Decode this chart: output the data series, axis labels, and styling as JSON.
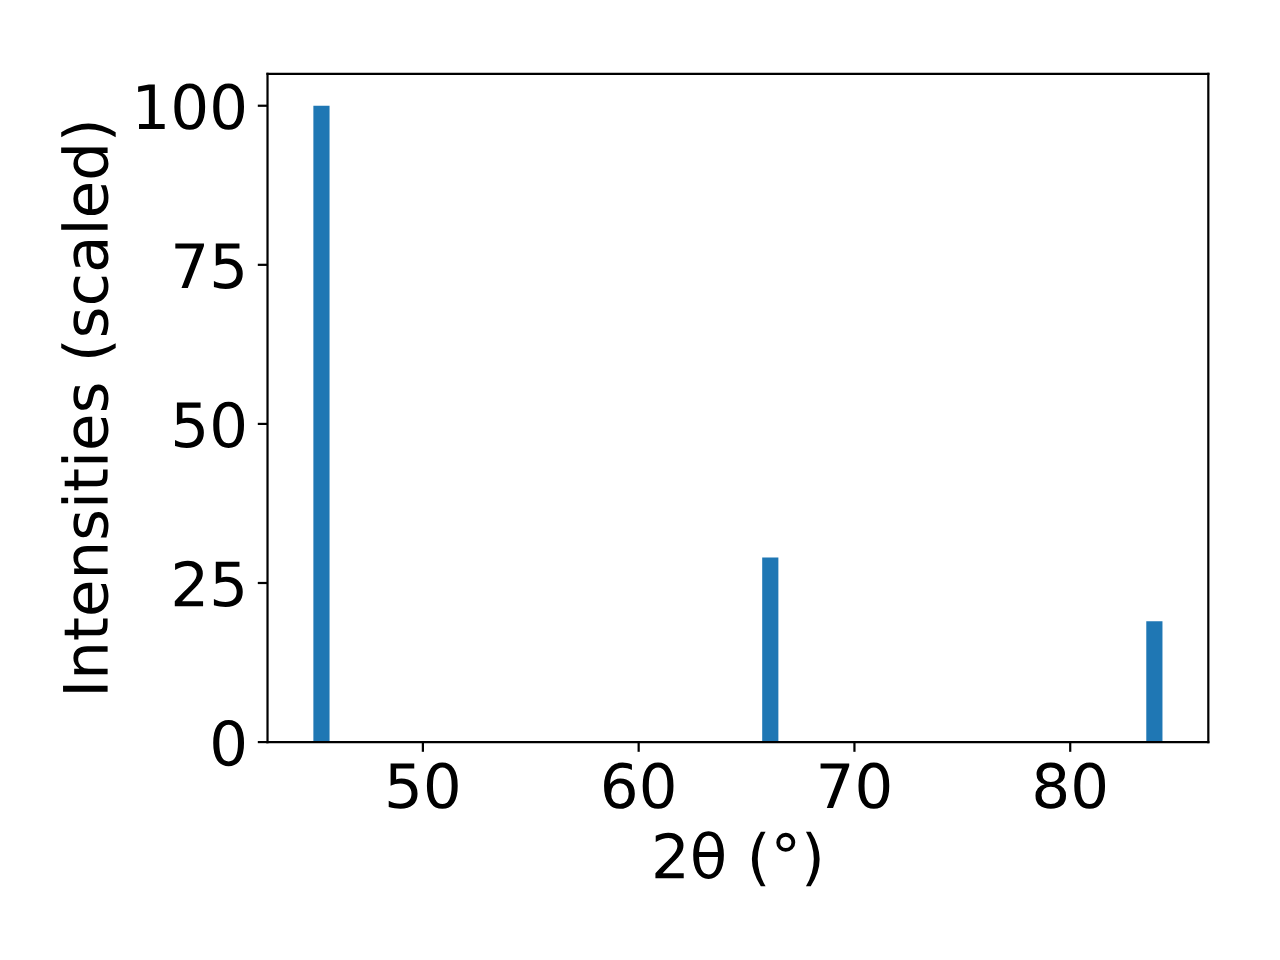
{
  "chart_data": {
    "type": "bar",
    "xlabel": "2θ (°)",
    "ylabel": "Intensities (scaled)",
    "x": [
      45.3,
      66.1,
      83.9
    ],
    "values": [
      100,
      29,
      19
    ],
    "color": "#1f77b4",
    "xlim": [
      42.8,
      86.4
    ],
    "xticks": [
      50,
      60,
      70,
      80
    ],
    "ylim": [
      0,
      105
    ],
    "yticks": [
      0,
      25,
      50,
      75,
      100
    ],
    "grid": false,
    "legend": false
  }
}
